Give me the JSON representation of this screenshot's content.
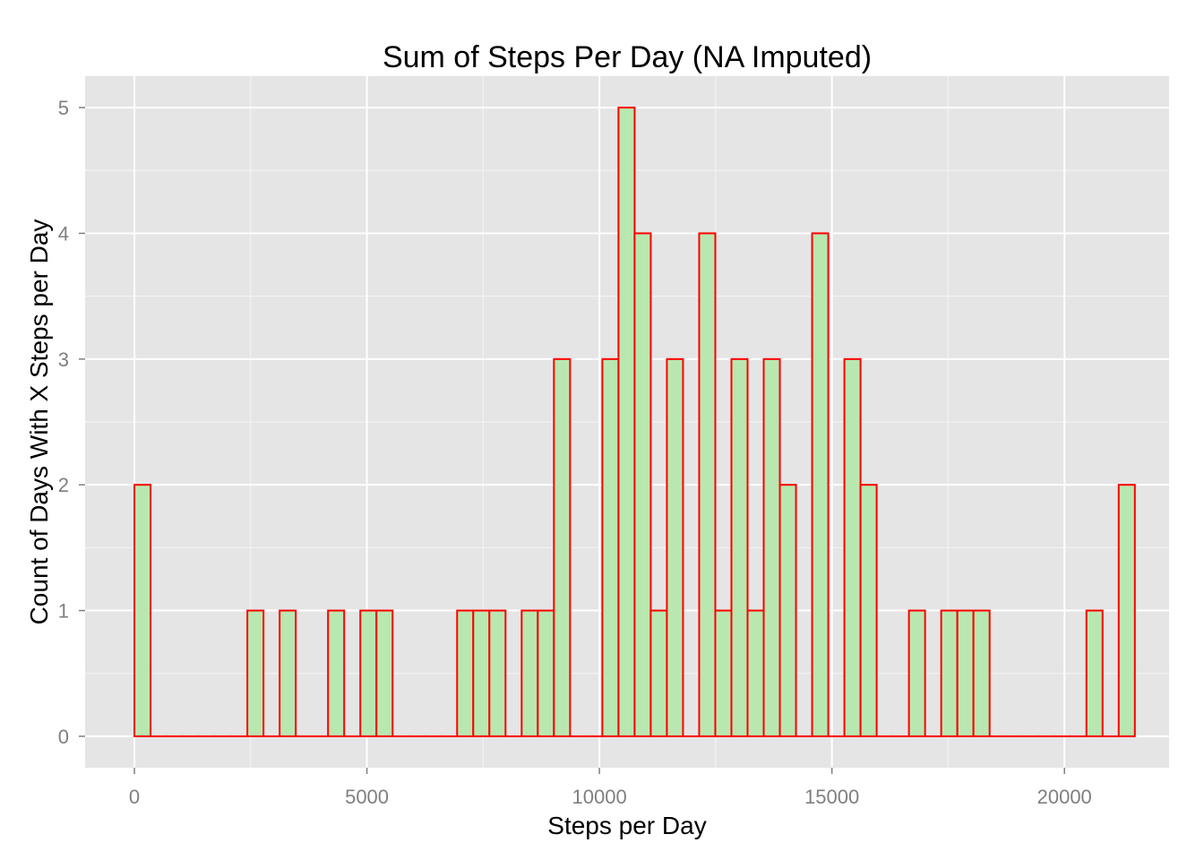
{
  "chart_data": {
    "type": "bar",
    "title": "Sum of Steps Per Day (NA Imputed)",
    "xlabel": "Steps per Day",
    "ylabel": "Count of Days With X Steps per Day",
    "xlim": [
      -1060,
      22250
    ],
    "ylim": [
      -0.25,
      5.25
    ],
    "x_ticks": [
      0,
      5000,
      10000,
      15000,
      20000
    ],
    "x_tick_labels": [
      "0",
      "5000",
      "10000",
      "15000",
      "20000"
    ],
    "y_ticks": [
      0,
      1,
      2,
      3,
      4,
      5
    ],
    "y_tick_labels": [
      "0",
      "1",
      "2",
      "3",
      "4",
      "5"
    ],
    "grid": true,
    "bin_width": 347,
    "bins_start": 0,
    "counts": [
      2,
      0,
      0,
      0,
      0,
      0,
      0,
      1,
      0,
      1,
      0,
      0,
      1,
      0,
      1,
      1,
      0,
      0,
      0,
      0,
      1,
      1,
      1,
      0,
      1,
      1,
      3,
      0,
      0,
      3,
      5,
      4,
      1,
      3,
      0,
      4,
      1,
      3,
      1,
      3,
      2,
      0,
      4,
      0,
      3,
      2,
      0,
      0,
      1,
      0,
      1,
      1,
      1,
      0,
      0,
      0,
      0,
      0,
      0,
      1,
      0,
      2
    ],
    "colors": {
      "panel_bg": "#e5e5e5",
      "grid_major": "#ffffff",
      "grid_minor": "#f2f2f2",
      "bar_fill": "#b8e8b0",
      "bar_outline": "#ff0000",
      "tick_label": "#7f7f7f",
      "tick_mark": "#7f7f7f"
    }
  }
}
